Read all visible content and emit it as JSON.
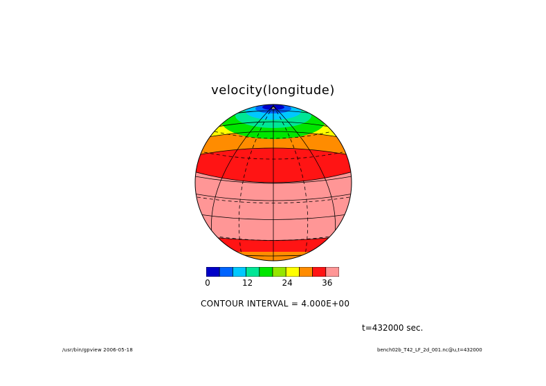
{
  "chart_data": {
    "type": "heatmap",
    "title": "velocity(longitude)",
    "projection": "orthographic globe",
    "levels": [
      0,
      4,
      8,
      12,
      16,
      20,
      24,
      28,
      32,
      36
    ],
    "colorbar": {
      "tick_labels": [
        "0",
        "12",
        "24",
        "36"
      ],
      "tick_values": [
        0,
        12,
        24,
        36
      ],
      "colors": [
        "#0000c8",
        "#0064ff",
        "#00c8ff",
        "#00e696",
        "#00e600",
        "#96e600",
        "#ffff00",
        "#ff8c00",
        "#ff1414",
        "#ff9696"
      ]
    },
    "contour_interval": "CONTOUR INTERVAL = 4.000E+00",
    "time": "t=432000 sec."
  },
  "footer": {
    "left": "/usr/bin/gpview  2006-05-18",
    "right": "bench02b_T42_LF_2d_001.nc@u,t=432000"
  }
}
